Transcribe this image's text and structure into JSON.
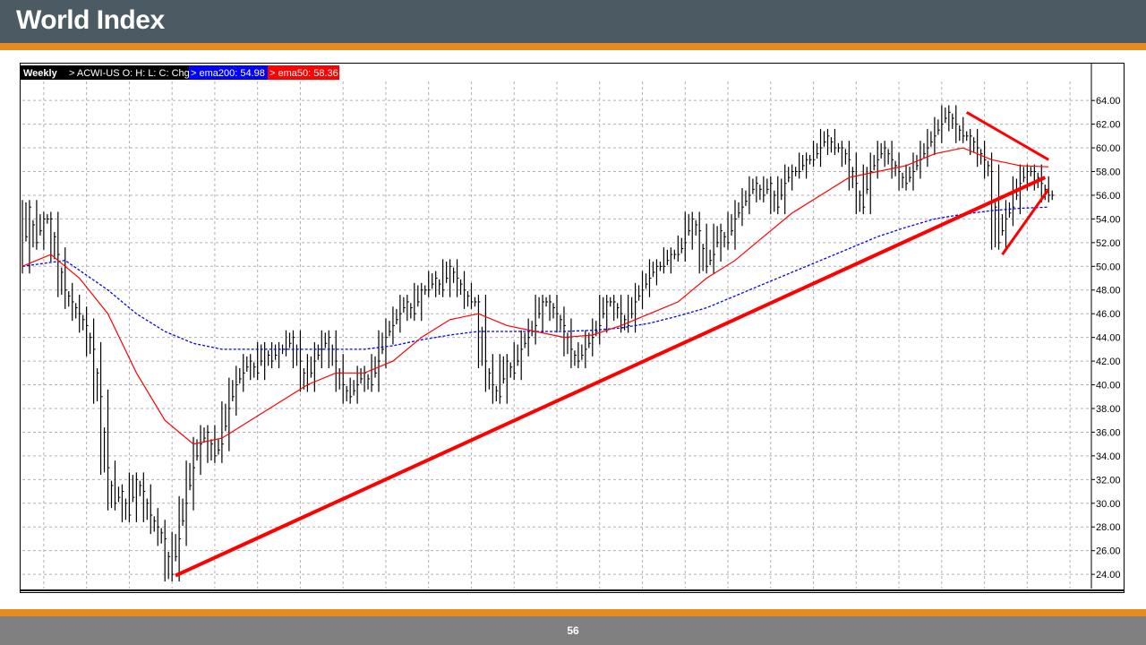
{
  "header": {
    "title": "World Index"
  },
  "footer": {
    "page_number": "56"
  },
  "colors": {
    "header_bg": "#4b5a63",
    "accent": "#e88b1e",
    "footer_bg": "#808080",
    "ema50": "#ff0000",
    "ema200": "#0000ff",
    "trendline": "#ff0000",
    "price_bars": "#000000"
  },
  "chart_data": {
    "type": "line",
    "legend": {
      "period": "Weekly",
      "symbol": "> ACWI-US O: H: L: C: Chg",
      "ema200_label": "> ema200: 54.98",
      "ema50_label": "> ema50: 58.36"
    },
    "y_ticks": [
      "64.00",
      "62.00",
      "60.00",
      "58.00",
      "56.00",
      "54.00",
      "52.00",
      "50.00",
      "48.00",
      "46.00",
      "44.00",
      "42.00",
      "40.00",
      "38.00",
      "36.00",
      "34.00",
      "32.00",
      "30.00",
      "28.00",
      "26.00",
      "24.00"
    ],
    "ylim": [
      22.8,
      65.6
    ],
    "x_range": [
      0,
      300
    ],
    "grid": true,
    "series": [
      {
        "name": "ACWI-US",
        "style": "weekly price bars",
        "points": [
          [
            0,
            50
          ],
          [
            2,
            55
          ],
          [
            4,
            52
          ],
          [
            6,
            54
          ],
          [
            8,
            54
          ],
          [
            10,
            51
          ],
          [
            12,
            48
          ],
          [
            14,
            47
          ],
          [
            16,
            46
          ],
          [
            18,
            45
          ],
          [
            20,
            43
          ],
          [
            22,
            39
          ],
          [
            24,
            33
          ],
          [
            26,
            30
          ],
          [
            28,
            31
          ],
          [
            30,
            29
          ],
          [
            32,
            32
          ],
          [
            34,
            31
          ],
          [
            36,
            29
          ],
          [
            38,
            28
          ],
          [
            40,
            27
          ],
          [
            42,
            24
          ],
          [
            44,
            27
          ],
          [
            46,
            30
          ],
          [
            48,
            33
          ],
          [
            50,
            35
          ],
          [
            52,
            36
          ],
          [
            54,
            34
          ],
          [
            56,
            35
          ],
          [
            58,
            38
          ],
          [
            60,
            40
          ],
          [
            62,
            41
          ],
          [
            64,
            42
          ],
          [
            66,
            41
          ],
          [
            68,
            43
          ],
          [
            70,
            42
          ],
          [
            72,
            43
          ],
          [
            74,
            43
          ],
          [
            76,
            44
          ],
          [
            78,
            42
          ],
          [
            80,
            40
          ],
          [
            82,
            42
          ],
          [
            84,
            43
          ],
          [
            86,
            44
          ],
          [
            88,
            42
          ],
          [
            90,
            40
          ],
          [
            92,
            39
          ],
          [
            94,
            40
          ],
          [
            96,
            41
          ],
          [
            98,
            40
          ],
          [
            100,
            42
          ],
          [
            102,
            44
          ],
          [
            104,
            45
          ],
          [
            106,
            46
          ],
          [
            108,
            47
          ],
          [
            110,
            46
          ],
          [
            112,
            48
          ],
          [
            114,
            48
          ],
          [
            116,
            49
          ],
          [
            118,
            48
          ],
          [
            120,
            50
          ],
          [
            122,
            49
          ],
          [
            124,
            48
          ],
          [
            126,
            47
          ],
          [
            128,
            47
          ],
          [
            130,
            42
          ],
          [
            132,
            40
          ],
          [
            134,
            39
          ],
          [
            136,
            42
          ],
          [
            138,
            41
          ],
          [
            140,
            43
          ],
          [
            142,
            44
          ],
          [
            144,
            45
          ],
          [
            146,
            47
          ],
          [
            148,
            47
          ],
          [
            150,
            46
          ],
          [
            152,
            45
          ],
          [
            154,
            43
          ],
          [
            156,
            42
          ],
          [
            158,
            43
          ],
          [
            160,
            44
          ],
          [
            162,
            45
          ],
          [
            164,
            47
          ],
          [
            166,
            47
          ],
          [
            168,
            46
          ],
          [
            170,
            45
          ],
          [
            172,
            47
          ],
          [
            174,
            48
          ],
          [
            176,
            49
          ],
          [
            178,
            50
          ],
          [
            180,
            50
          ],
          [
            182,
            51
          ],
          [
            184,
            51
          ],
          [
            186,
            52
          ],
          [
            188,
            54
          ],
          [
            190,
            53
          ],
          [
            192,
            50
          ],
          [
            194,
            51
          ],
          [
            196,
            53
          ],
          [
            198,
            52
          ],
          [
            200,
            54
          ],
          [
            202,
            55
          ],
          [
            204,
            56
          ],
          [
            206,
            57
          ],
          [
            208,
            56
          ],
          [
            210,
            57
          ],
          [
            212,
            55
          ],
          [
            214,
            57
          ],
          [
            216,
            58
          ],
          [
            218,
            58
          ],
          [
            220,
            59
          ],
          [
            222,
            59
          ],
          [
            224,
            60
          ],
          [
            226,
            61
          ],
          [
            228,
            60
          ],
          [
            230,
            60
          ],
          [
            232,
            59
          ],
          [
            234,
            57
          ],
          [
            236,
            55
          ],
          [
            238,
            58
          ],
          [
            240,
            59
          ],
          [
            242,
            60
          ],
          [
            244,
            59
          ],
          [
            246,
            58
          ],
          [
            248,
            57
          ],
          [
            250,
            58
          ],
          [
            252,
            59
          ],
          [
            254,
            60
          ],
          [
            256,
            61
          ],
          [
            258,
            62
          ],
          [
            260,
            63
          ],
          [
            262,
            62
          ],
          [
            264,
            61
          ],
          [
            266,
            61
          ],
          [
            268,
            60
          ],
          [
            270,
            59
          ],
          [
            272,
            58
          ],
          [
            274,
            52
          ],
          [
            276,
            54
          ],
          [
            278,
            55
          ],
          [
            280,
            57
          ],
          [
            282,
            58
          ],
          [
            284,
            58
          ],
          [
            286,
            57
          ],
          [
            288,
            56
          ]
        ]
      },
      {
        "name": "ema50",
        "points": [
          [
            0,
            50
          ],
          [
            8,
            51
          ],
          [
            16,
            49
          ],
          [
            24,
            46
          ],
          [
            32,
            41
          ],
          [
            40,
            37
          ],
          [
            48,
            35
          ],
          [
            56,
            35.5
          ],
          [
            64,
            37
          ],
          [
            72,
            38.5
          ],
          [
            80,
            40
          ],
          [
            88,
            41
          ],
          [
            96,
            41
          ],
          [
            104,
            42
          ],
          [
            112,
            44
          ],
          [
            120,
            45.5
          ],
          [
            128,
            46
          ],
          [
            136,
            45
          ],
          [
            144,
            44.5
          ],
          [
            152,
            44
          ],
          [
            160,
            44.2
          ],
          [
            168,
            45
          ],
          [
            176,
            46
          ],
          [
            184,
            47
          ],
          [
            192,
            49
          ],
          [
            200,
            50.5
          ],
          [
            208,
            52.5
          ],
          [
            216,
            54.5
          ],
          [
            224,
            56
          ],
          [
            232,
            57.5
          ],
          [
            240,
            58
          ],
          [
            248,
            58.5
          ],
          [
            256,
            59.5
          ],
          [
            264,
            60
          ],
          [
            272,
            59
          ],
          [
            280,
            58.5
          ],
          [
            288,
            58.4
          ]
        ]
      },
      {
        "name": "ema200",
        "points": [
          [
            0,
            50
          ],
          [
            12,
            50.5
          ],
          [
            24,
            48
          ],
          [
            32,
            46
          ],
          [
            40,
            44.5
          ],
          [
            48,
            43.5
          ],
          [
            56,
            43
          ],
          [
            64,
            43
          ],
          [
            72,
            43
          ],
          [
            80,
            43
          ],
          [
            88,
            43
          ],
          [
            96,
            43
          ],
          [
            104,
            43.3
          ],
          [
            112,
            43.8
          ],
          [
            120,
            44.2
          ],
          [
            128,
            44.5
          ],
          [
            136,
            44.5
          ],
          [
            144,
            44.5
          ],
          [
            152,
            44.5
          ],
          [
            160,
            44.6
          ],
          [
            168,
            44.8
          ],
          [
            176,
            45.2
          ],
          [
            184,
            45.8
          ],
          [
            192,
            46.5
          ],
          [
            200,
            47.5
          ],
          [
            208,
            48.5
          ],
          [
            216,
            49.5
          ],
          [
            224,
            50.5
          ],
          [
            232,
            51.5
          ],
          [
            240,
            52.5
          ],
          [
            248,
            53.3
          ],
          [
            256,
            54
          ],
          [
            264,
            54.4
          ],
          [
            272,
            54.7
          ],
          [
            280,
            54.9
          ],
          [
            288,
            55
          ]
        ]
      },
      {
        "name": "support trendline",
        "points": [
          [
            43,
            23.9
          ],
          [
            287,
            57.5
          ]
        ]
      },
      {
        "name": "triangle upper line",
        "points": [
          [
            265,
            63
          ],
          [
            288,
            59
          ]
        ]
      },
      {
        "name": "triangle lower line",
        "points": [
          [
            275,
            51
          ],
          [
            288,
            56.5
          ]
        ]
      }
    ]
  }
}
